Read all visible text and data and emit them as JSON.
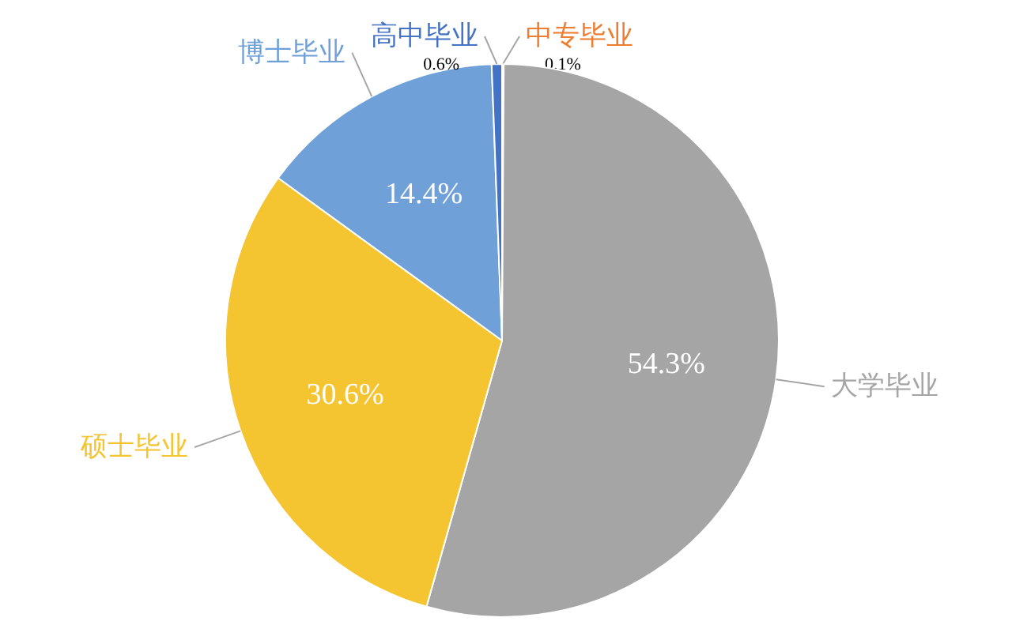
{
  "chart_data": {
    "type": "pie",
    "categories": [
      "中专毕业",
      "大学毕业",
      "硕士毕业",
      "博士毕业",
      "高中毕业"
    ],
    "values": [
      0.1,
      54.3,
      30.6,
      14.4,
      0.6
    ],
    "colors": [
      "#ed7d31",
      "#a5a5a5",
      "#f4c431",
      "#6fa0d8",
      "#4472c4"
    ],
    "value_labels": [
      "0.1%",
      "54.3%",
      "30.6%",
      "14.4%",
      "0.6%"
    ]
  }
}
